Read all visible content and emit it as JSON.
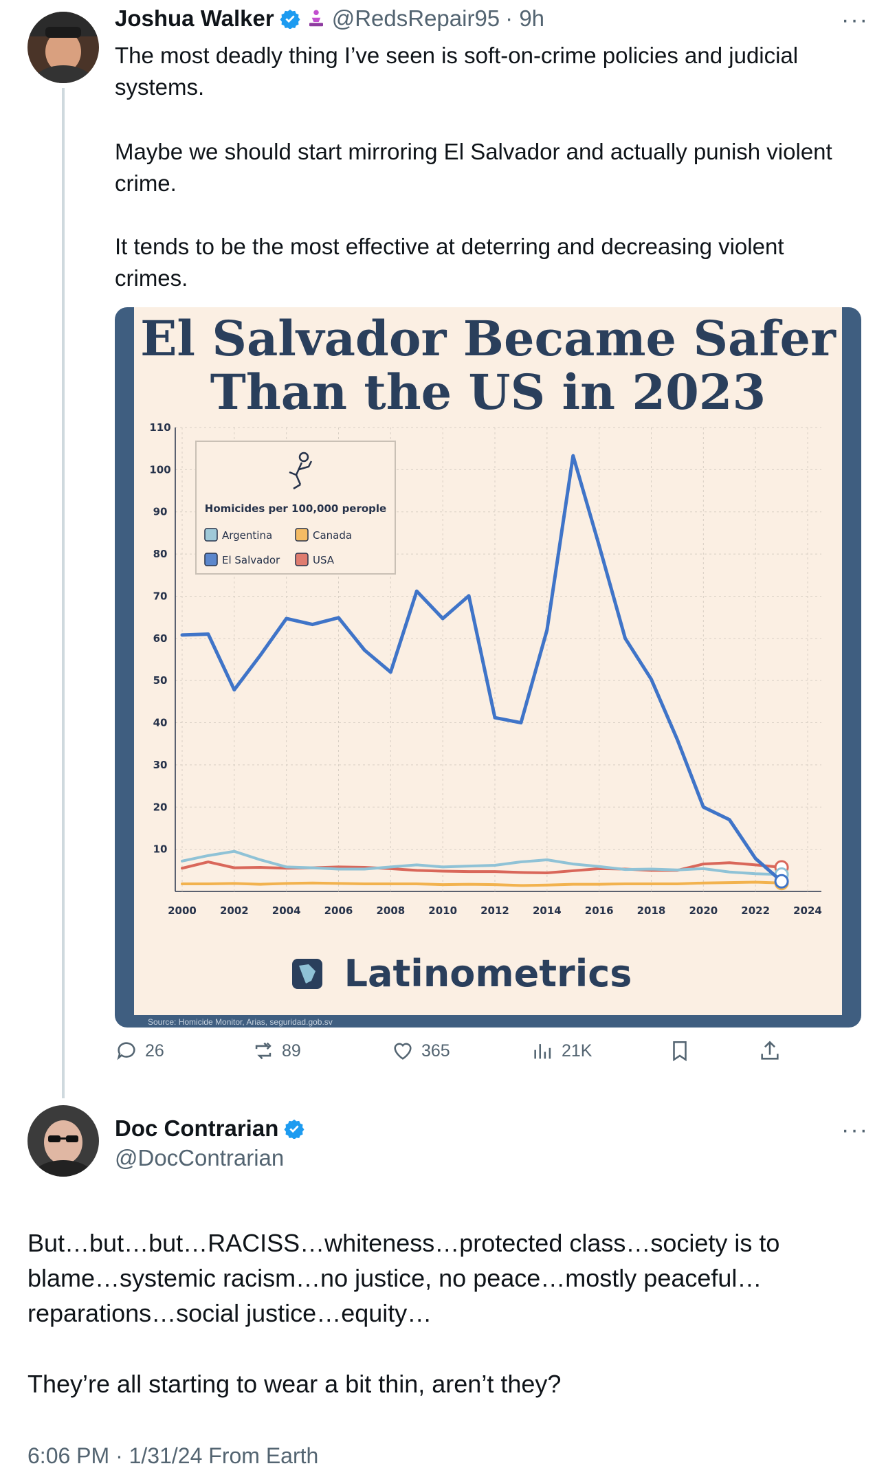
{
  "tweet": {
    "author_name": "Joshua Walker",
    "author_handle": "@RedsRepair95",
    "time_ago": "· 9h",
    "text_p1": "The most deadly thing I’ve seen is soft-on-crime policies and judicial systems.",
    "text_p2": "Maybe we should start mirroring El Salvador and actually punish violent crime.",
    "text_p3": "It tends to be the most effective at deterring and decreasing violent crimes.",
    "actions": {
      "replies": "26",
      "reposts": "89",
      "likes": "365",
      "views": "21K"
    },
    "icons": [
      "verified-badge-icon",
      "person-kneeling-icon",
      "more-icon",
      "reply-icon",
      "repost-icon",
      "like-icon",
      "views-icon",
      "bookmark-icon",
      "share-icon"
    ]
  },
  "chart_data": {
    "type": "line",
    "title_line1": "El Salvador Became Safer",
    "title_line2": "Than the US in 2023",
    "legend_title": "Homicides per 100,000 perople",
    "brand": "Latinometrics",
    "source_text": "Source: Homicide Monitor, Arias, seguridad.gob.sv",
    "x_ticks": [
      "2000",
      "2002",
      "2004",
      "2006",
      "2008",
      "2010",
      "2012",
      "2014",
      "2016",
      "2018",
      "2020",
      "2022",
      "2024"
    ],
    "y_ticks": [
      "10",
      "20",
      "30",
      "40",
      "50",
      "60",
      "70",
      "80",
      "90",
      "100",
      "110"
    ],
    "xlim": [
      2000,
      2024
    ],
    "ylim": [
      0,
      110
    ],
    "x": [
      2000,
      2001,
      2002,
      2003,
      2004,
      2005,
      2006,
      2007,
      2008,
      2009,
      2010,
      2011,
      2012,
      2013,
      2014,
      2015,
      2016,
      2017,
      2018,
      2019,
      2020,
      2021,
      2022,
      2023
    ],
    "series": [
      {
        "name": "Argentina",
        "color": "#8fc2d6",
        "values": [
          7.2,
          8.5,
          9.5,
          7.5,
          5.8,
          5.6,
          5.3,
          5.3,
          5.8,
          6.3,
          5.8,
          6.0,
          6.2,
          7.0,
          7.5,
          6.5,
          5.9,
          5.2,
          5.3,
          5.1,
          5.4,
          4.6,
          4.2,
          4.0
        ]
      },
      {
        "name": "Canada",
        "color": "#f2b24e",
        "values": [
          1.8,
          1.8,
          1.9,
          1.7,
          1.9,
          2.0,
          1.9,
          1.8,
          1.8,
          1.8,
          1.6,
          1.7,
          1.6,
          1.4,
          1.5,
          1.7,
          1.7,
          1.8,
          1.8,
          1.8,
          2.0,
          2.1,
          2.2,
          2.0
        ]
      },
      {
        "name": "El Salvador",
        "color": "#3f74c8",
        "values": [
          60.8,
          61.0,
          47.8,
          56.0,
          64.7,
          63.3,
          64.9,
          57.2,
          52.0,
          71.2,
          64.7,
          70.1,
          41.2,
          40.0,
          62.0,
          103.3,
          82.0,
          60.0,
          50.3,
          36.0,
          20.0,
          17.0,
          7.8,
          2.4
        ]
      },
      {
        "name": "USA",
        "color": "#d9675a",
        "values": [
          5.5,
          7.0,
          5.6,
          5.7,
          5.5,
          5.6,
          5.8,
          5.7,
          5.4,
          5.0,
          4.8,
          4.7,
          4.7,
          4.5,
          4.4,
          4.9,
          5.4,
          5.3,
          5.0,
          5.0,
          6.5,
          6.8,
          6.3,
          5.7
        ]
      }
    ],
    "grid": true,
    "legend_position": "top-left"
  },
  "reply": {
    "author_name": "Doc Contrarian",
    "author_handle": "@DocContrarian",
    "text_p1": "But…but…but…RACISS…whiteness…protected class…society is to blame…systemic racism…no justice, no peace…mostly peaceful…reparations…social justice…equity…",
    "text_p2": "They’re all starting to wear a bit thin, aren’t they?",
    "timestamp": "6:06 PM · 1/31/24 From Earth"
  },
  "colors": {
    "verified": "#1d9bf0",
    "muted": "#536471",
    "card_border": "#3f5e80",
    "card_bg": "#fbefe3"
  }
}
